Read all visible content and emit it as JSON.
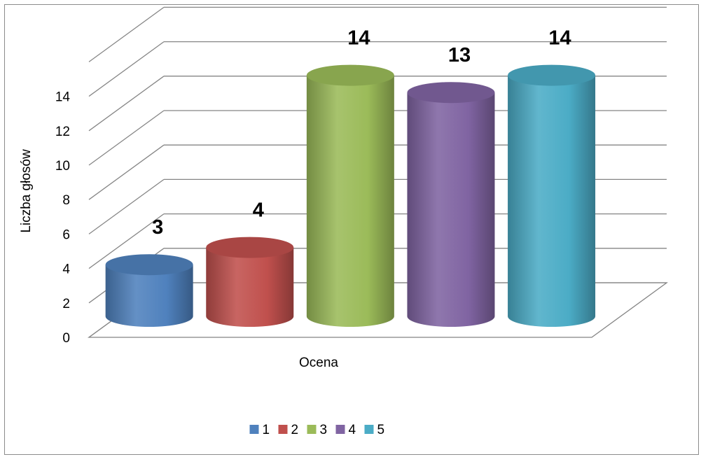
{
  "chart_data": {
    "type": "bar",
    "style": "3d-cylinder",
    "title": "",
    "xlabel": "Ocena",
    "ylabel": "Liczba głosów",
    "ylim": [
      0,
      14
    ],
    "yticks": [
      "0",
      "2",
      "4",
      "6",
      "8",
      "10",
      "12",
      "14"
    ],
    "grid": true,
    "legend_position": "bottom",
    "series": [
      {
        "name": "1",
        "value": 3,
        "label": "3",
        "color": "#4f81bd"
      },
      {
        "name": "2",
        "value": 4,
        "label": "4",
        "color": "#c0504d"
      },
      {
        "name": "3",
        "value": 14,
        "label": "14",
        "color": "#9bbb59"
      },
      {
        "name": "4",
        "value": 13,
        "label": "13",
        "color": "#8064a2"
      },
      {
        "name": "5",
        "value": 14,
        "label": "14",
        "color": "#4bacc6"
      }
    ]
  }
}
